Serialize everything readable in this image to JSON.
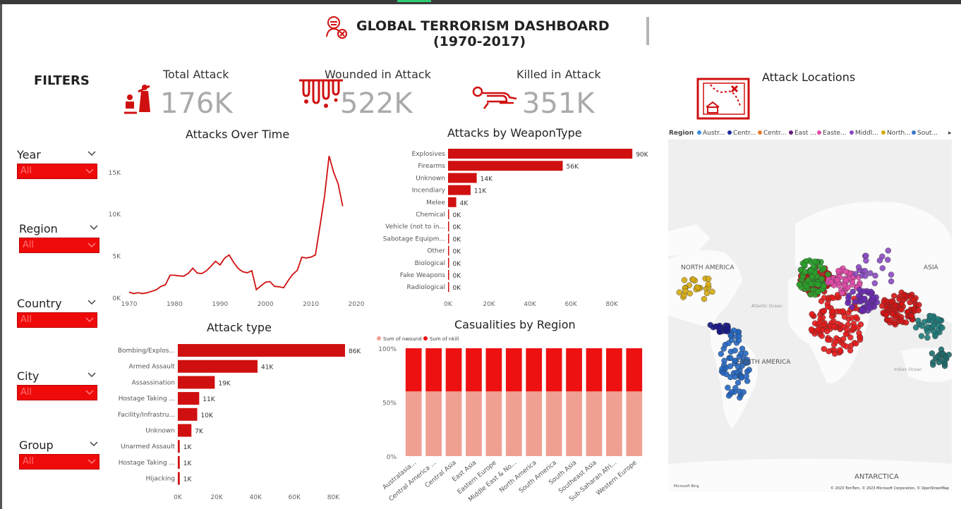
{
  "header": {
    "title_line1": "GLOBAL TERRORISM DASHBOARD",
    "title_line2": "(1970-2017)"
  },
  "filters": {
    "title": "FILTERS",
    "slicers": [
      {
        "label": "Year",
        "value": "All"
      },
      {
        "label": "Region",
        "value": "All"
      },
      {
        "label": "Country",
        "value": "All"
      },
      {
        "label": "City",
        "value": "All"
      },
      {
        "label": "Group",
        "value": "All"
      }
    ]
  },
  "kpis": [
    {
      "label": "Total Attack",
      "value": "176K"
    },
    {
      "label": "Wounded in Attack",
      "value": "522K"
    },
    {
      "label": "Killed in Attack",
      "value": "351K"
    }
  ],
  "map": {
    "title": "Attack Locations",
    "legend_title": "Region",
    "legend": [
      {
        "name": "Austr...",
        "color": "#3b8ee0"
      },
      {
        "name": "Centr...",
        "color": "#1a2a9a"
      },
      {
        "name": "Centr...",
        "color": "#e87b2a"
      },
      {
        "name": "East ...",
        "color": "#6a1a7a"
      },
      {
        "name": "Easte...",
        "color": "#e04aa8"
      },
      {
        "name": "Middl...",
        "color": "#8a4ac0"
      },
      {
        "name": "North...",
        "color": "#d4aa10"
      },
      {
        "name": "Sout...",
        "color": "#3a78c8"
      }
    ],
    "labels": {
      "north_america": "NORTH AMERICA",
      "south_america": "SOUTH AMERICA",
      "asia": "ASIA",
      "antarctica": "ANTARCTICA",
      "atlantic": "Atlantic Ocean",
      "indian": "Indian Ocean"
    },
    "attribution": "© 2023 TomTom, © 2023 Microsoft Corporation, © OpenStreetMap",
    "bing": "Microsoft Bing"
  },
  "chart_data": [
    {
      "type": "line",
      "title": "Attacks Over Time",
      "x": [
        1970,
        1971,
        1972,
        1973,
        1974,
        1975,
        1976,
        1977,
        1978,
        1979,
        1980,
        1981,
        1982,
        1983,
        1984,
        1985,
        1986,
        1987,
        1988,
        1989,
        1990,
        1991,
        1992,
        1993,
        1994,
        1995,
        1996,
        1997,
        1998,
        1999,
        2000,
        2001,
        2002,
        2003,
        2004,
        2005,
        2006,
        2007,
        2008,
        2009,
        2010,
        2011,
        2012,
        2013,
        2014,
        2015,
        2016,
        2017
      ],
      "y": [
        651,
        471,
        568,
        473,
        581,
        740,
        923,
        1319,
        1526,
        2662,
        2662,
        2586,
        2544,
        2870,
        3495,
        2915,
        2860,
        3183,
        3721,
        4324,
        3887,
        4683,
        5071,
        4200,
        3456,
        3081,
        2956,
        3197,
        934,
        1395,
        1814,
        1906,
        1333,
        1278,
        1166,
        2017,
        2758,
        3242,
        4805,
        4721,
        4826,
        5076,
        8522,
        12036,
        16903,
        14965,
        13587,
        10900
      ],
      "xlim": [
        1970,
        2020
      ],
      "ylim": [
        0,
        17000
      ],
      "xticks": [
        "1970",
        "1980",
        "1990",
        "2000",
        "2010",
        "2020"
      ],
      "yticks": [
        "0K",
        "5K",
        "10K",
        "15K"
      ],
      "color": "#d01010"
    },
    {
      "type": "bar",
      "title": "Attacks by WeaponType",
      "categories": [
        "Explosives",
        "Firearms",
        "Unknown",
        "Incendiary",
        "Melee",
        "Chemical",
        "Vehicle (not to in...",
        "Sabotage Equipm...",
        "Other",
        "Biological",
        "Fake Weapons",
        "Radiological"
      ],
      "values": [
        90000,
        56000,
        14000,
        11000,
        4000,
        0,
        0,
        0,
        0,
        0,
        0,
        0
      ],
      "data_labels": [
        "90K",
        "56K",
        "14K",
        "11K",
        "4K",
        "0K",
        "0K",
        "0K",
        "0K",
        "0K",
        "0K",
        "0K"
      ],
      "xlim": [
        0,
        92000
      ],
      "xticks": [
        "0K",
        "20K",
        "40K",
        "60K",
        "80K"
      ],
      "color": "#d01010"
    },
    {
      "type": "bar",
      "title": "Attack type",
      "categories": [
        "Bombing/Explos...",
        "Armed Assault",
        "Assassination",
        "Hostage Taking ...",
        "Facility/Infrastru...",
        "Unknown",
        "Unarmed Assault",
        "Hostage Taking ...",
        "Hijacking"
      ],
      "values": [
        86000,
        41000,
        19000,
        11000,
        10000,
        7000,
        1000,
        1000,
        1000
      ],
      "data_labels": [
        "86K",
        "41K",
        "19K",
        "11K",
        "10K",
        "7K",
        "1K",
        "1K",
        "1K"
      ],
      "xlim": [
        0,
        90000
      ],
      "xticks": [
        "0K",
        "20K",
        "40K",
        "60K",
        "80K"
      ],
      "color": "#d01010"
    },
    {
      "type": "bar",
      "title": "Casualities by Region",
      "categories": [
        "Australasia...",
        "Central America ...",
        "Central Asia",
        "East Asia",
        "Eastern Europe",
        "Middle East & No...",
        "North America",
        "South America",
        "South Asia",
        "Southeast Asia",
        "Sub-Saharan Afri...",
        "Western Europe"
      ],
      "series": [
        {
          "name": "Sum of nwound",
          "values": [
            60,
            60,
            60,
            60,
            60,
            60,
            60,
            60,
            60,
            60,
            60,
            60
          ],
          "color": "#f0a093"
        },
        {
          "name": "Sum of nkill",
          "values": [
            40,
            40,
            40,
            40,
            40,
            40,
            40,
            40,
            40,
            40,
            40,
            40
          ],
          "color": "#ee1111"
        }
      ],
      "stacked": "100%",
      "ylim": [
        0,
        100
      ],
      "yticks": [
        "0%",
        "50%",
        "100%"
      ]
    }
  ]
}
